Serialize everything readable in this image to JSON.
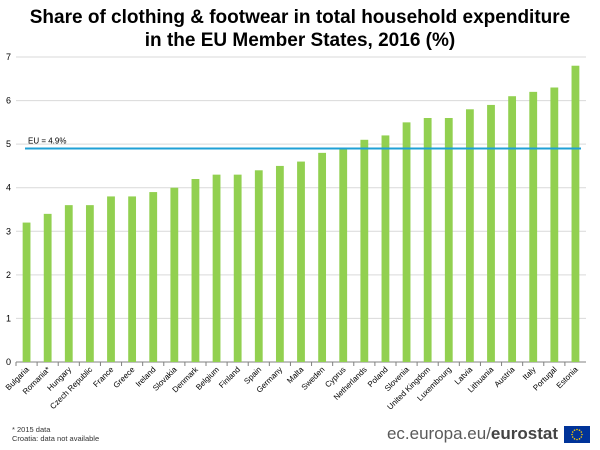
{
  "title_line1": "Share of clothing & footwear in total household expenditure",
  "title_line2": "in the EU Member States, 2016 (%)",
  "notes": [
    "* 2015 data",
    "Croatia: data not available"
  ],
  "brand": {
    "prefix": "ec.europa.eu/",
    "name": "eurostat"
  },
  "colors": {
    "bar": "#92d050",
    "eu_line": "#1fa0d6",
    "grid": "#d9d9d9",
    "flag_bg": "#003399",
    "flag_star": "#ffcc00"
  },
  "chart_data": {
    "type": "bar",
    "title": "Share of clothing & footwear in total household expenditure in the EU Member States, 2016 (%)",
    "xlabel": "",
    "ylabel": "",
    "ylim": [
      0,
      7
    ],
    "yticks": [
      0,
      1,
      2,
      3,
      4,
      5,
      6,
      7
    ],
    "grid": true,
    "categories": [
      "Bulgaria",
      "Romania*",
      "Hungary",
      "Czech Republic",
      "France",
      "Greece",
      "Ireland",
      "Slovakia",
      "Denmark",
      "Belgium",
      "Finland",
      "Spain",
      "Germany",
      "Malta",
      "Sweden",
      "Cyprus",
      "Netherlands",
      "Poland",
      "Slovenia",
      "United Kingdom",
      "Luxembourg",
      "Latvia",
      "Lithuania",
      "Austria",
      "Italy",
      "Portugal",
      "Estonia"
    ],
    "values": [
      3.2,
      3.4,
      3.6,
      3.6,
      3.8,
      3.8,
      3.9,
      4.0,
      4.2,
      4.3,
      4.3,
      4.4,
      4.5,
      4.6,
      4.8,
      4.9,
      5.1,
      5.2,
      5.5,
      5.6,
      5.6,
      5.8,
      5.9,
      6.1,
      6.2,
      6.3,
      6.8
    ],
    "reference_line": {
      "label": "EU = 4.9%",
      "value": 4.9
    }
  }
}
